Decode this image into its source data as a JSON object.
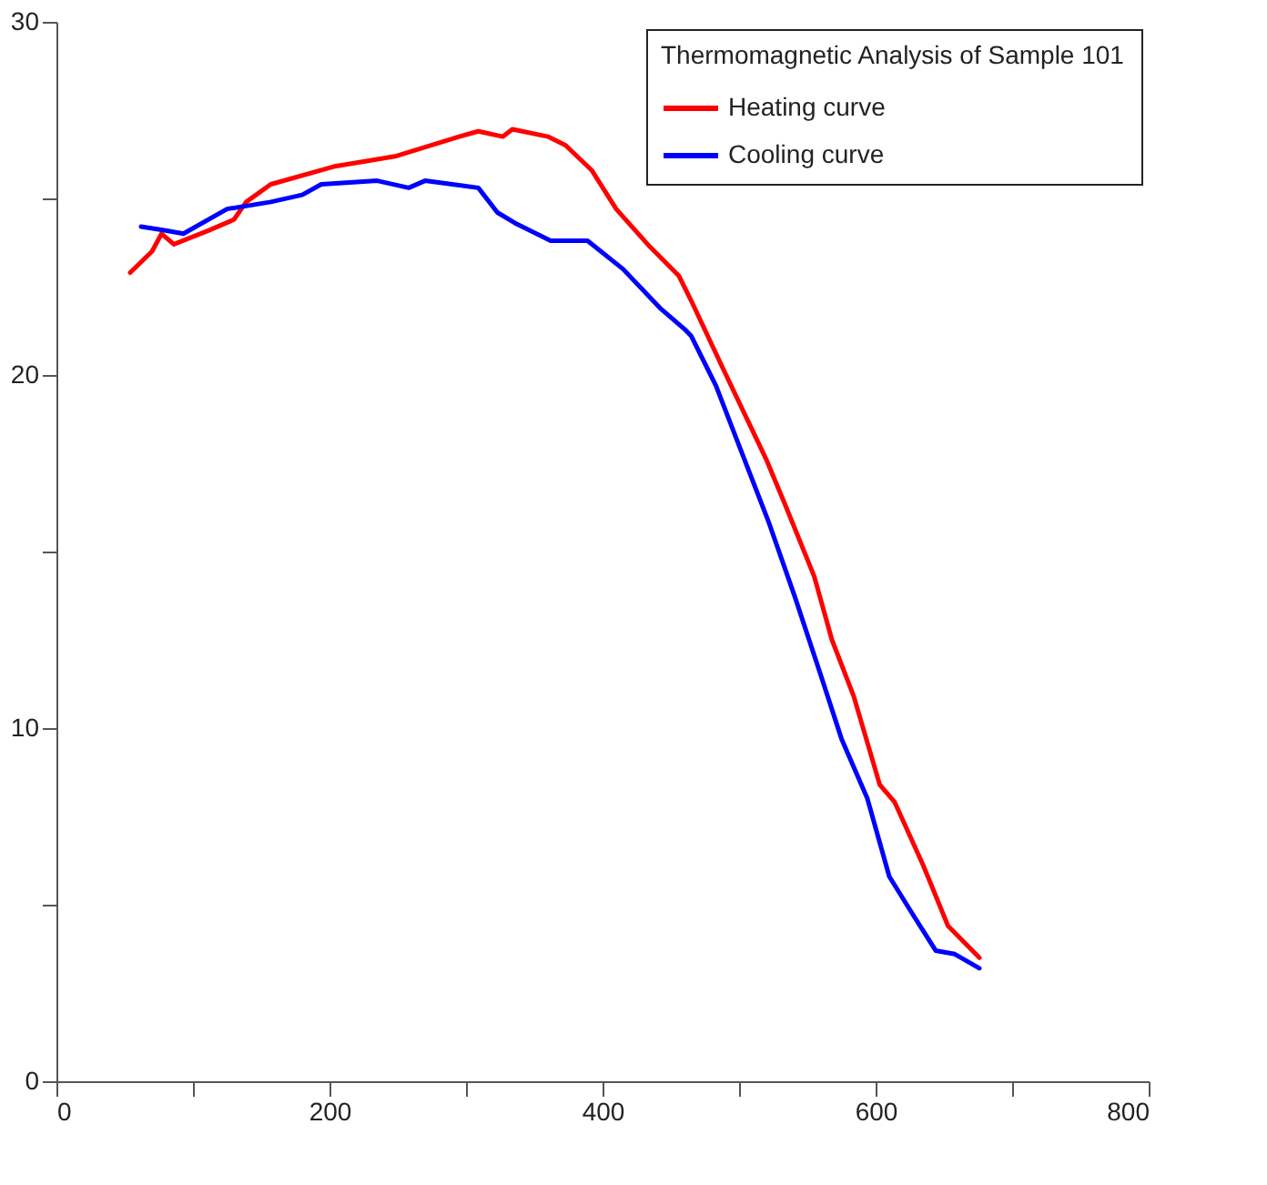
{
  "chart_data": {
    "type": "line",
    "legend_title": "Thermomagnetic Analysis of Sample 101",
    "legend": "top right",
    "grid": false,
    "marker": "none",
    "line_style": "solid",
    "xlim": [
      0,
      800
    ],
    "xticks": [
      0,
      {
        "value": 100,
        "label": null
      },
      200,
      {
        "value": 300,
        "label": null
      },
      400,
      {
        "value": 500,
        "label": null
      },
      600,
      {
        "value": 700,
        "label": null
      },
      800
    ],
    "ylim": [
      0,
      30
    ],
    "yticks": [
      0,
      {
        "value": 5,
        "label": null
      },
      10,
      {
        "value": 15,
        "label": null
      },
      20,
      {
        "value": 25,
        "label": null
      },
      30
    ],
    "series": [
      {
        "name": "Heating curve",
        "color": "#ff0000",
        "x": [
          54,
          70,
          77,
          86,
          112,
          130,
          139,
          157,
          203,
          249,
          295,
          309,
          327,
          334,
          360,
          373,
          392,
          410,
          433,
          456,
          465,
          488,
          520,
          534,
          555,
          568,
          584,
          603,
          614,
          635,
          653,
          676
        ],
        "values": [
          22.9,
          23.5,
          24.0,
          23.7,
          24.1,
          24.4,
          24.9,
          25.4,
          25.9,
          26.2,
          26.75,
          26.9,
          26.75,
          26.96,
          26.75,
          26.5,
          25.8,
          24.7,
          23.7,
          22.8,
          22.1,
          20.2,
          17.6,
          16.3,
          14.3,
          12.5,
          10.9,
          8.4,
          7.9,
          6.1,
          4.4,
          3.5
        ]
      },
      {
        "name": "Cooling curve",
        "color": "#0000ff",
        "x": [
          62,
          79,
          93,
          125,
          157,
          180,
          194,
          235,
          258,
          270,
          309,
          323,
          336,
          362,
          389,
          415,
          442,
          460,
          465,
          483,
          504,
          522,
          541,
          559,
          575,
          594,
          610,
          626,
          644,
          658,
          676
        ],
        "values": [
          24.2,
          24.1,
          24.0,
          24.7,
          24.9,
          25.1,
          25.4,
          25.5,
          25.3,
          25.5,
          25.3,
          24.6,
          24.3,
          23.8,
          23.8,
          23.0,
          21.9,
          21.3,
          21.1,
          19.7,
          17.6,
          15.8,
          13.7,
          11.6,
          9.7,
          8.0,
          5.8,
          4.8,
          3.7,
          3.6,
          3.2
        ]
      }
    ]
  }
}
